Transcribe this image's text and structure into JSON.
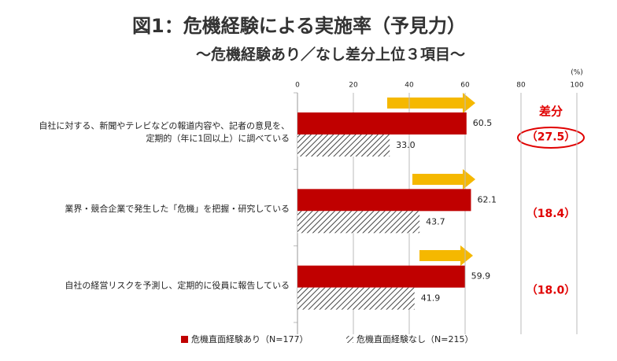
{
  "chart_data": {
    "type": "bar",
    "orientation": "horizontal",
    "title": "図1：危機経験による実施率（予見力）",
    "subtitle": "〜危機経験あり／なし差分上位３項目〜",
    "unit_label": "(%)",
    "categories": [
      "自社に対する、新聞やテレビなどの報道内容や、記者の意見を、\n定期的（年に1回以上）に調べている",
      "業界・競合企業で発生した「危機」を把握・研究している",
      "自社の経営リスクを予測し、定期的に役員に報告している"
    ],
    "series": [
      {
        "name": "危機直面経験あり（N=177）",
        "color": "#c00000",
        "values": [
          60.5,
          62.1,
          59.9
        ]
      },
      {
        "name": "危機直面経験なし（N=215）",
        "color": "hatch",
        "values": [
          33,
          43.7,
          41.9
        ],
        "value_labels": [
          "33.0",
          "43.7",
          "41.9"
        ]
      }
    ],
    "difference": {
      "label": "差分",
      "values": [
        27.5,
        18.4,
        18
      ],
      "value_labels": [
        "（27.5）",
        "（18.4）",
        "（18.0）"
      ]
    },
    "xlim": [
      0,
      100
    ],
    "xticks": [
      0,
      20,
      40,
      60,
      80,
      100
    ],
    "grid": true
  }
}
